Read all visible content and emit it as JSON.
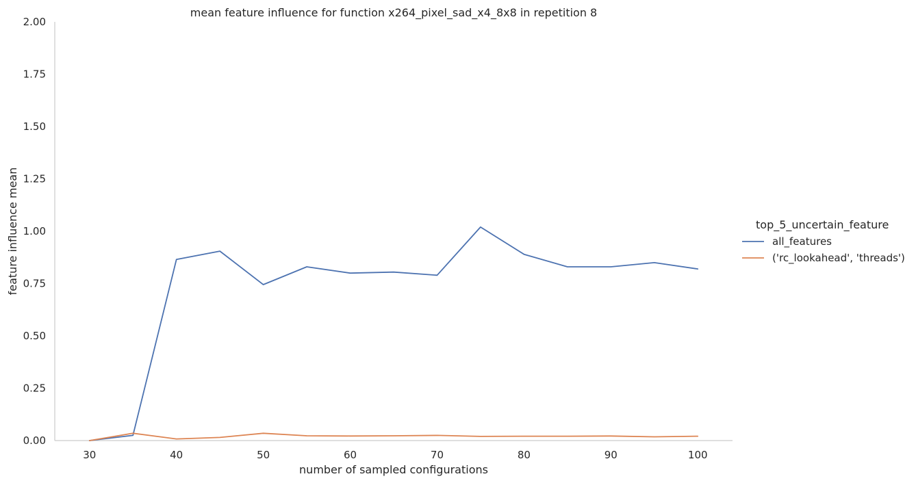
{
  "chart_data": {
    "type": "line",
    "title": "mean feature influence for function x264_pixel_sad_x4_8x8 in repetition 8",
    "xlabel": "number of sampled configurations",
    "ylabel": "feature influence mean",
    "xlim": [
      26,
      104
    ],
    "ylim": [
      0,
      2
    ],
    "xticks": [
      30,
      40,
      50,
      60,
      70,
      80,
      90,
      100
    ],
    "yticks": [
      0.0,
      0.25,
      0.5,
      0.75,
      1.0,
      1.25,
      1.5,
      1.75,
      2.0
    ],
    "ytick_labels": [
      "0.00",
      "0.25",
      "0.50",
      "0.75",
      "1.00",
      "1.25",
      "1.50",
      "1.75",
      "2.00"
    ],
    "grid": false,
    "legend": {
      "title": "top_5_uncertain_feature",
      "placement": "right"
    },
    "x": [
      30,
      35,
      40,
      45,
      50,
      55,
      60,
      65,
      70,
      75,
      80,
      85,
      90,
      95,
      100
    ],
    "series": [
      {
        "name": "all_features",
        "color": "#4c72b0",
        "values": [
          0.0,
          0.025,
          0.865,
          0.905,
          0.745,
          0.83,
          0.8,
          0.805,
          0.79,
          1.02,
          0.89,
          0.83,
          0.83,
          0.85,
          0.82
        ]
      },
      {
        "name": "('rc_lookahead', 'threads')",
        "color": "#dd8452",
        "values": [
          0.0,
          0.035,
          0.008,
          0.015,
          0.035,
          0.023,
          0.022,
          0.023,
          0.025,
          0.02,
          0.021,
          0.021,
          0.022,
          0.018,
          0.021
        ]
      }
    ]
  }
}
